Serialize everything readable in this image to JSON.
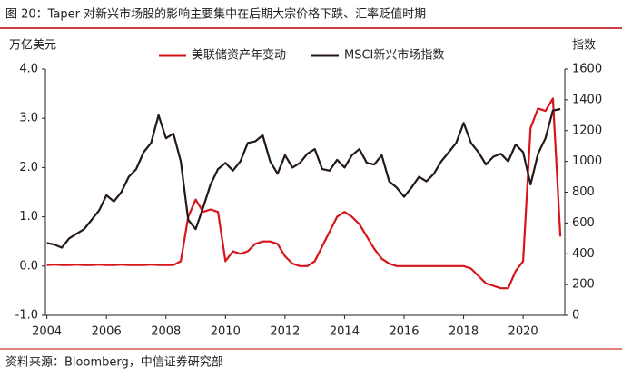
{
  "chart_data": {
    "type": "line",
    "title": "图 20：Taper 对新兴市场股的影响主要集中在后期大宗价格下跌、汇率贬值时期",
    "y_label": "万亿美元",
    "y2_label": "指数",
    "source": "资料来源：Bloomberg，中信证券研究部",
    "x": [
      2004,
      2004.25,
      2004.5,
      2004.75,
      2005,
      2005.25,
      2005.5,
      2005.75,
      2006,
      2006.25,
      2006.5,
      2006.75,
      2007,
      2007.25,
      2007.5,
      2007.75,
      2008,
      2008.25,
      2008.5,
      2008.75,
      2009,
      2009.25,
      2009.5,
      2009.75,
      2010,
      2010.25,
      2010.5,
      2010.75,
      2011,
      2011.25,
      2011.5,
      2011.75,
      2012,
      2012.25,
      2012.5,
      2012.75,
      2013,
      2013.25,
      2013.5,
      2013.75,
      2014,
      2014.25,
      2014.5,
      2014.75,
      2015,
      2015.25,
      2015.5,
      2015.75,
      2016,
      2016.25,
      2016.5,
      2016.75,
      2017,
      2017.25,
      2017.5,
      2017.75,
      2018,
      2018.25,
      2018.5,
      2018.75,
      2019,
      2019.25,
      2019.5,
      2019.75,
      2020,
      2020.25,
      2020.5,
      2020.75,
      2021,
      2021.25
    ],
    "series": [
      {
        "name": "美联储资产年变动",
        "color": "#d7141a",
        "axis": "y",
        "values": [
          0.02,
          0.03,
          0.02,
          0.02,
          0.03,
          0.02,
          0.02,
          0.03,
          0.02,
          0.02,
          0.03,
          0.02,
          0.02,
          0.02,
          0.03,
          0.02,
          0.02,
          0.02,
          0.1,
          1.0,
          1.35,
          1.1,
          1.15,
          1.1,
          0.1,
          0.3,
          0.25,
          0.3,
          0.45,
          0.5,
          0.5,
          0.45,
          0.2,
          0.05,
          0.0,
          0.0,
          0.1,
          0.4,
          0.7,
          1.0,
          1.1,
          1.0,
          0.85,
          0.6,
          0.35,
          0.15,
          0.05,
          0.0,
          0.0,
          0.0,
          0.0,
          0.0,
          0.0,
          0.0,
          0.0,
          0.0,
          0.0,
          -0.05,
          -0.2,
          -0.35,
          -0.4,
          -0.45,
          -0.45,
          -0.1,
          0.1,
          2.8,
          3.2,
          3.15,
          3.4,
          0.6
        ]
      },
      {
        "name": "MSCI新兴市场指数",
        "color": "#231815",
        "axis": "y2",
        "values": [
          470,
          460,
          440,
          500,
          530,
          560,
          620,
          680,
          780,
          740,
          800,
          900,
          950,
          1060,
          1120,
          1300,
          1150,
          1180,
          1000,
          620,
          560,
          700,
          850,
          950,
          990,
          940,
          1000,
          1120,
          1130,
          1170,
          1000,
          920,
          1040,
          960,
          990,
          1050,
          1080,
          950,
          940,
          1010,
          960,
          1040,
          1080,
          990,
          980,
          1040,
          870,
          830,
          770,
          830,
          900,
          870,
          920,
          1000,
          1060,
          1120,
          1250,
          1120,
          1060,
          980,
          1030,
          1050,
          1000,
          1110,
          1060,
          850,
          1050,
          1150,
          1330,
          1340
        ]
      }
    ],
    "xlim": [
      2003.95,
      2021.4
    ],
    "xticks": [
      2004,
      2006,
      2008,
      2010,
      2012,
      2014,
      2016,
      2018,
      2020
    ],
    "ylim": [
      -1,
      4
    ],
    "yticks": [
      {
        "value": -1,
        "label": "-1.0"
      },
      {
        "value": 0,
        "label": "0.0"
      },
      {
        "value": 1,
        "label": "1.0"
      },
      {
        "value": 2,
        "label": "2.0"
      },
      {
        "value": 3,
        "label": "3.0"
      },
      {
        "value": 4,
        "label": "4.0"
      }
    ],
    "y2lim": [
      0,
      1600
    ],
    "y2ticks": [
      0,
      200,
      400,
      600,
      800,
      1000,
      1200,
      1400,
      1600
    ],
    "legend": "top"
  }
}
